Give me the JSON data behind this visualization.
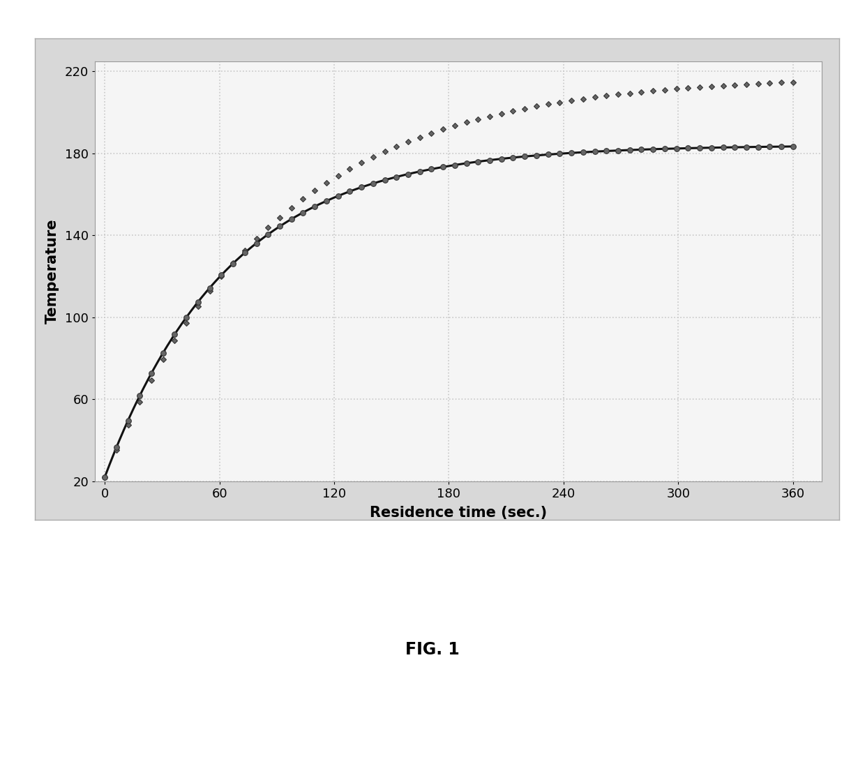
{
  "xlabel": "Residence time (sec.)",
  "ylabel": "Temperature",
  "xlabel_fontsize": 15,
  "ylabel_fontsize": 15,
  "xlabel_fontweight": "bold",
  "ylabel_fontweight": "bold",
  "fig_label": "FIG. 1",
  "fig_label_fontsize": 17,
  "fig_label_fontweight": "bold",
  "xlim": [
    -5,
    375
  ],
  "ylim": [
    20,
    225
  ],
  "xticks": [
    0,
    60,
    120,
    180,
    240,
    300,
    360
  ],
  "yticks": [
    20,
    60,
    100,
    140,
    180,
    220
  ],
  "tick_fontsize": 13,
  "grid_color": "#c8c8c8",
  "grid_linestyle": ":",
  "grid_linewidth": 1.2,
  "plot_bg_color": "#f5f5f5",
  "outer_bg_color": "#d8d8d8",
  "fig_bg_color": "#ffffff",
  "curve1_marker": "D",
  "curve2_marker": "o",
  "curve1_markersize": 4.5,
  "curve2_markersize": 5.5,
  "curve1_T_inf": 218,
  "curve1_T0": 22,
  "curve1_tau": 88,
  "curve2_T_inf": 184,
  "curve2_T0": 22,
  "curve2_tau": 65,
  "line_color": "#111111",
  "line_width": 2.2,
  "marker_color": "#666666",
  "marker_edge_color": "#333333",
  "marker_linewidth": 0.8,
  "n_markers": 60,
  "figsize": [
    12.4,
    10.95
  ],
  "dpi": 100
}
